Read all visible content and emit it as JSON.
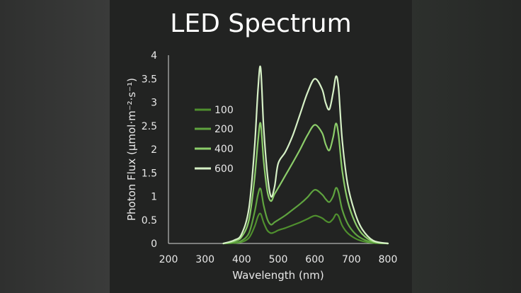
{
  "chart_data": {
    "type": "line",
    "title": "LED Spectrum",
    "xlabel": "Wavelength (nm)",
    "ylabel": "Photon Flux (µmol·m⁻²·s⁻¹)",
    "xlim": [
      200,
      800
    ],
    "ylim": [
      0,
      4
    ],
    "xticks": [
      "200",
      "300",
      "400",
      "500",
      "600",
      "700",
      "800"
    ],
    "yticks": [
      "0",
      "0.5",
      "1",
      "1.5",
      "2",
      "2.5",
      "3",
      "3.5",
      "4"
    ],
    "x": [
      350,
      380,
      400,
      420,
      435,
      445,
      452,
      460,
      470,
      480,
      490,
      500,
      520,
      540,
      560,
      580,
      600,
      620,
      630,
      640,
      650,
      658,
      665,
      675,
      690,
      710,
      730,
      760,
      800
    ],
    "series": [
      {
        "name": "100",
        "color": "#4f8f2e",
        "values": [
          0,
          0.01,
          0.03,
          0.12,
          0.35,
          0.58,
          0.63,
          0.45,
          0.28,
          0.22,
          0.24,
          0.28,
          0.33,
          0.39,
          0.45,
          0.52,
          0.59,
          0.54,
          0.48,
          0.45,
          0.52,
          0.62,
          0.58,
          0.38,
          0.22,
          0.11,
          0.05,
          0.01,
          0
        ]
      },
      {
        "name": "200",
        "color": "#5fa33f",
        "values": [
          0,
          0.02,
          0.06,
          0.22,
          0.65,
          1.05,
          1.16,
          0.82,
          0.52,
          0.4,
          0.45,
          0.5,
          0.6,
          0.72,
          0.84,
          0.98,
          1.14,
          1.04,
          0.94,
          0.88,
          1.0,
          1.18,
          1.08,
          0.72,
          0.42,
          0.21,
          0.1,
          0.02,
          0
        ]
      },
      {
        "name": "400",
        "color": "#8ccd6a",
        "values": [
          0,
          0.05,
          0.14,
          0.5,
          1.35,
          2.2,
          2.55,
          1.78,
          1.12,
          0.9,
          1.05,
          1.18,
          1.45,
          1.72,
          2.0,
          2.3,
          2.52,
          2.35,
          2.1,
          1.98,
          2.25,
          2.55,
          2.3,
          1.55,
          0.9,
          0.45,
          0.2,
          0.04,
          0
        ]
      },
      {
        "name": "600",
        "color": "#d6f0c6",
        "values": [
          0,
          0.07,
          0.2,
          0.75,
          2.0,
          3.3,
          3.73,
          2.5,
          1.5,
          1.0,
          1.2,
          1.7,
          1.95,
          2.3,
          2.75,
          3.2,
          3.5,
          3.28,
          2.98,
          2.85,
          3.2,
          3.55,
          3.3,
          2.2,
          1.25,
          0.65,
          0.3,
          0.06,
          0
        ]
      }
    ],
    "legend_position": "upper-left",
    "grid": false
  }
}
